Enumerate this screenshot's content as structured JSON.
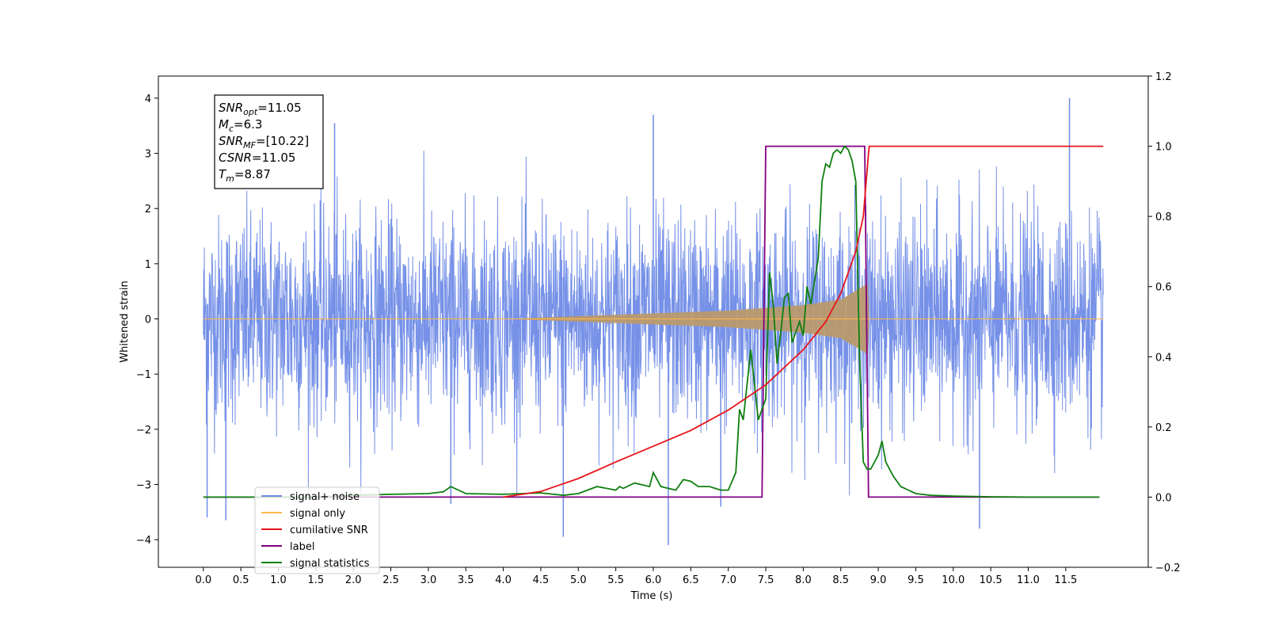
{
  "chart_data": {
    "type": "line",
    "title": "",
    "xlabel": "Time (s)",
    "ylabel": "Whitened strain",
    "xlim": [
      -0.6,
      12.6
    ],
    "ylim": [
      -4.5,
      4.4
    ],
    "y2lim": [
      -0.2,
      1.2
    ],
    "grid": false,
    "legend_position": "lower-left",
    "x_ticks": [
      0.0,
      0.5,
      1.0,
      1.5,
      2.0,
      2.5,
      3.0,
      3.5,
      4.0,
      4.5,
      5.0,
      5.5,
      6.0,
      6.5,
      7.0,
      7.5,
      8.0,
      8.5,
      9.0,
      9.5,
      10.0,
      10.5,
      11.0,
      11.5
    ],
    "x_tick_labels": [
      "0.0",
      "0.5",
      "1.0",
      "1.5",
      "2.0",
      "2.5",
      "3.0",
      "3.5",
      "4.0",
      "4.5",
      "5.0",
      "5.5",
      "6.0",
      "6.5",
      "7.0",
      "7.5",
      "8.0",
      "8.5",
      "9.0",
      "9.5",
      "10.0",
      "10.5",
      "11.0",
      "11.5"
    ],
    "y_ticks": [
      -4,
      -3,
      -2,
      -1,
      0,
      1,
      2,
      3,
      4
    ],
    "y_tick_labels": [
      "−4",
      "−3",
      "−2",
      "−1",
      "0",
      "1",
      "2",
      "3",
      "4"
    ],
    "y2_ticks": [
      -0.2,
      0.0,
      0.2,
      0.4,
      0.6,
      0.8,
      1.0,
      1.2
    ],
    "y2_tick_labels": [
      "−0.2",
      "0.0",
      "0.2",
      "0.4",
      "0.6",
      "0.8",
      "1.0",
      "1.2"
    ],
    "annotation_lines": [
      {
        "sym": "SNR",
        "sub": "opt",
        "rest": "=11.05"
      },
      {
        "sym": "M",
        "sub": "c",
        "rest": "=6.3"
      },
      {
        "sym": "SNR",
        "sub": "MF",
        "rest": "=[10.22]"
      },
      {
        "sym": "CSNR",
        "sub": "",
        "rest": "=11.05"
      },
      {
        "sym": "T",
        "sub": "m",
        "rest": "=8.87"
      }
    ],
    "series": [
      {
        "name": "signal+ noise",
        "axis": "left",
        "color": "#6f8be6",
        "style": "noise",
        "x_range": [
          0.0,
          12.0
        ],
        "envelope_typical": [
          -1.5,
          1.5
        ],
        "extremes": [
          {
            "x": 0.05,
            "y": -3.6
          },
          {
            "x": 0.3,
            "y": -3.65
          },
          {
            "x": 1.75,
            "y": 3.55
          },
          {
            "x": 3.3,
            "y": -3.35
          },
          {
            "x": 4.8,
            "y": -3.95
          },
          {
            "x": 6.0,
            "y": 3.7
          },
          {
            "x": 6.2,
            "y": -4.1
          },
          {
            "x": 6.9,
            "y": -3.4
          },
          {
            "x": 10.35,
            "y": -3.8
          },
          {
            "x": 11.55,
            "y": 4.0
          }
        ]
      },
      {
        "name": "signal only",
        "axis": "left",
        "color": "#ffb74d",
        "style": "chirp",
        "x": [
          0.0,
          4.0,
          5.0,
          6.0,
          7.0,
          7.5,
          8.0,
          8.5,
          8.75,
          8.87,
          8.88,
          12.0
        ],
        "amplitude": [
          0.0,
          0.0,
          0.05,
          0.1,
          0.15,
          0.2,
          0.25,
          0.35,
          0.55,
          0.65,
          0.0,
          0.0
        ]
      },
      {
        "name": "cumilative SNR",
        "axis": "right",
        "color": "#e8141c",
        "x": [
          4.0,
          4.5,
          5.0,
          5.5,
          6.0,
          6.5,
          7.0,
          7.5,
          8.0,
          8.3,
          8.5,
          8.7,
          8.8,
          8.87,
          8.88,
          12.0
        ],
        "values": [
          0.0,
          0.016,
          0.053,
          0.1,
          0.145,
          0.19,
          0.248,
          0.32,
          0.42,
          0.5,
          0.58,
          0.7,
          0.8,
          0.98,
          1.0,
          1.0
        ]
      },
      {
        "name": "label",
        "axis": "right",
        "color": "#800080",
        "x": [
          0.0,
          7.45,
          7.5,
          8.82,
          8.87,
          11.95
        ],
        "values": [
          0.0,
          0.0,
          1.0,
          1.0,
          0.0,
          0.0
        ]
      },
      {
        "name": "signal statistics",
        "axis": "right",
        "color": "#0f7f0f",
        "x": [
          0.0,
          1.5,
          2.0,
          2.5,
          3.0,
          3.2,
          3.3,
          3.5,
          4.0,
          4.5,
          4.8,
          5.0,
          5.25,
          5.5,
          5.55,
          5.6,
          5.65,
          5.75,
          5.85,
          5.95,
          6.0,
          6.1,
          6.2,
          6.3,
          6.4,
          6.5,
          6.6,
          6.75,
          6.9,
          7.0,
          7.1,
          7.15,
          7.2,
          7.3,
          7.4,
          7.45,
          7.5,
          7.55,
          7.6,
          7.65,
          7.7,
          7.75,
          7.8,
          7.85,
          7.9,
          7.95,
          8.0,
          8.05,
          8.1,
          8.2,
          8.25,
          8.3,
          8.35,
          8.4,
          8.45,
          8.5,
          8.55,
          8.6,
          8.65,
          8.7,
          8.75,
          8.8,
          8.85,
          8.9,
          9.0,
          9.05,
          9.1,
          9.2,
          9.3,
          9.5,
          9.7,
          10.0,
          10.5,
          11.0,
          11.5,
          11.95
        ],
        "values": [
          0.0,
          0.0,
          0.005,
          0.008,
          0.01,
          0.015,
          0.03,
          0.01,
          0.008,
          0.012,
          0.005,
          0.01,
          0.03,
          0.02,
          0.03,
          0.025,
          0.03,
          0.04,
          0.035,
          0.03,
          0.07,
          0.03,
          0.025,
          0.02,
          0.05,
          0.045,
          0.03,
          0.03,
          0.02,
          0.02,
          0.07,
          0.25,
          0.22,
          0.42,
          0.22,
          0.25,
          0.28,
          0.64,
          0.55,
          0.38,
          0.47,
          0.57,
          0.58,
          0.44,
          0.47,
          0.5,
          0.46,
          0.6,
          0.55,
          0.68,
          0.9,
          0.95,
          0.94,
          0.98,
          0.99,
          0.98,
          1.0,
          0.99,
          0.96,
          0.9,
          0.4,
          0.1,
          0.08,
          0.08,
          0.12,
          0.16,
          0.1,
          0.06,
          0.03,
          0.01,
          0.005,
          0.003,
          0.001,
          0.0,
          0.0,
          0.0
        ]
      }
    ]
  }
}
